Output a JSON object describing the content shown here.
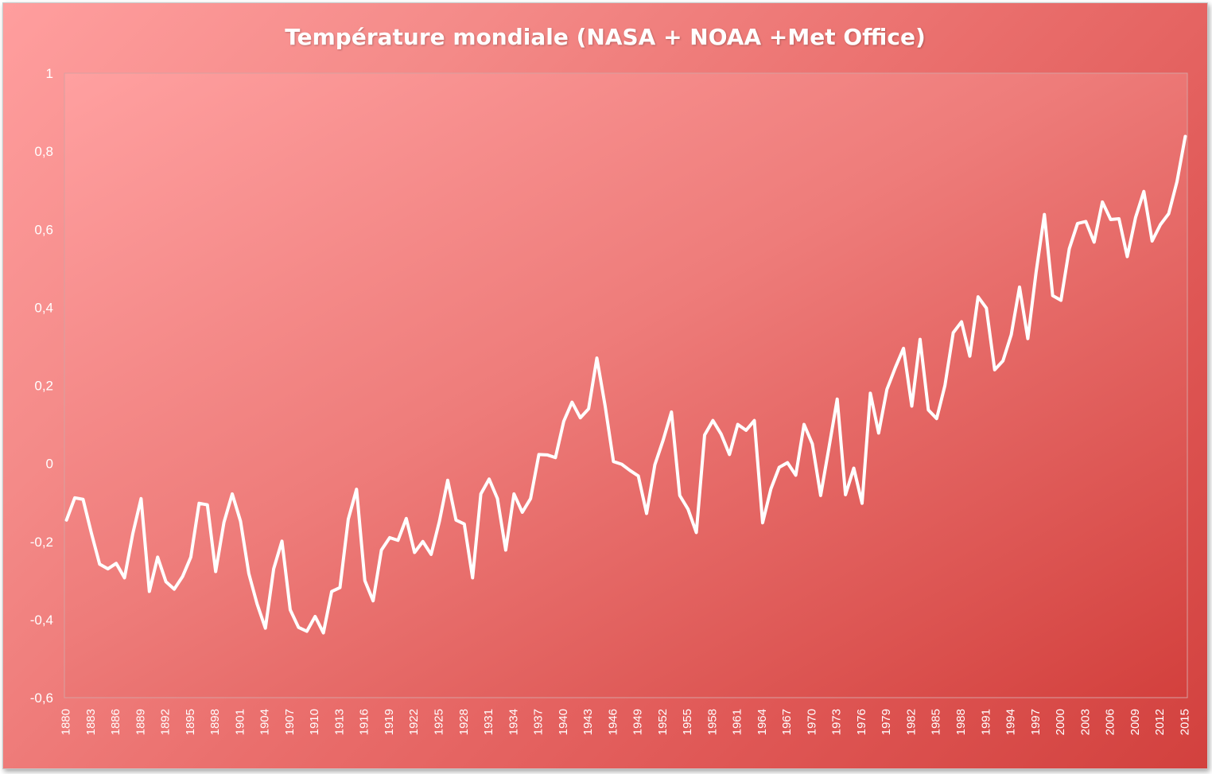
{
  "chart_data": {
    "type": "line",
    "title": "Température mondiale (NASA + NOAA +Met Office)",
    "xlabel": "",
    "ylabel": "",
    "ylim": [
      -0.6,
      1
    ],
    "yticks": [
      "-0,6",
      "-0,4",
      "-0,2",
      "0",
      "0,2",
      "0,4",
      "0,6",
      "0,8",
      "1"
    ],
    "ytick_values": [
      -0.6,
      -0.4,
      -0.2,
      0,
      0.2,
      0.4,
      0.6,
      0.8,
      1
    ],
    "x_start": 1880,
    "x_end": 2015,
    "xtick_labels": [
      "1880",
      "1883",
      "1886",
      "1889",
      "1892",
      "1895",
      "1898",
      "1901",
      "1904",
      "1907",
      "1910",
      "1913",
      "1916",
      "1919",
      "1922",
      "1925",
      "1928",
      "1931",
      "1934",
      "1937",
      "1940",
      "1943",
      "1946",
      "1949",
      "1952",
      "1955",
      "1958",
      "1961",
      "1964",
      "1967",
      "1970",
      "1973",
      "1976",
      "1979",
      "1982",
      "1985",
      "1988",
      "1991",
      "1994",
      "1997",
      "2000",
      "2003",
      "2006",
      "2009",
      "2012",
      "2015"
    ],
    "grid": false,
    "legend": "none",
    "line_color": "#ffffff",
    "series": [
      {
        "values": [
          -0.145,
          -0.088,
          -0.092,
          -0.178,
          -0.258,
          -0.27,
          -0.256,
          -0.293,
          -0.18,
          -0.09,
          -0.328,
          -0.24,
          -0.303,
          -0.322,
          -0.29,
          -0.24,
          -0.102,
          -0.106,
          -0.277,
          -0.151,
          -0.078,
          -0.148,
          -0.282,
          -0.36,
          -0.422,
          -0.27,
          -0.199,
          -0.375,
          -0.42,
          -0.43,
          -0.392,
          -0.434,
          -0.328,
          -0.318,
          -0.143,
          -0.066,
          -0.3,
          -0.352,
          -0.222,
          -0.19,
          -0.197,
          -0.141,
          -0.228,
          -0.2,
          -0.233,
          -0.148,
          -0.043,
          -0.145,
          -0.155,
          -0.293,
          -0.078,
          -0.04,
          -0.09,
          -0.222,
          -0.078,
          -0.125,
          -0.09,
          0.023,
          0.022,
          0.015,
          0.108,
          0.157,
          0.117,
          0.14,
          0.27,
          0.147,
          0.005,
          -0.002,
          -0.018,
          -0.032,
          -0.128,
          -0.003,
          0.06,
          0.132,
          -0.082,
          -0.117,
          -0.177,
          0.073,
          0.11,
          0.075,
          0.023,
          0.1,
          0.085,
          0.11,
          -0.152,
          -0.065,
          -0.01,
          0.002,
          -0.03,
          0.1,
          0.05,
          -0.082,
          0.04,
          0.165,
          -0.08,
          -0.012,
          -0.102,
          0.18,
          0.078,
          0.19,
          0.245,
          0.295,
          0.147,
          0.318,
          0.137,
          0.115,
          0.2,
          0.335,
          0.363,
          0.275,
          0.427,
          0.398,
          0.24,
          0.263,
          0.33,
          0.452,
          0.32,
          0.49,
          0.638,
          0.43,
          0.418,
          0.55,
          0.615,
          0.62,
          0.567,
          0.67,
          0.625,
          0.627,
          0.53,
          0.63,
          0.697,
          0.57,
          0.612,
          0.64,
          0.722,
          0.838
        ]
      }
    ]
  }
}
